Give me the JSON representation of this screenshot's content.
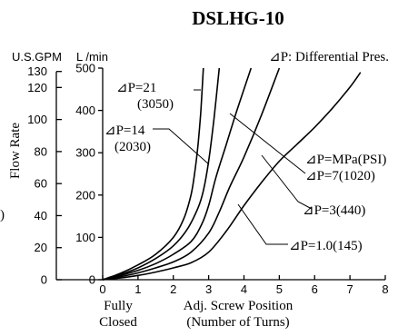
{
  "chart_data": {
    "type": "line",
    "title": "DSLHG-10",
    "legend_note": "⊿P: Differential Pres.",
    "xlabel_line1": "Adj. Screw Position",
    "xlabel_line2": "(Number of Turns)",
    "x_zero_label_line1": "Fully",
    "x_zero_label_line2": "Closed",
    "ylabel": "Flow Rate",
    "y_left_unit": "U.S.GPM",
    "y_right_unit": "L /min",
    "left_edge_glyph": ")",
    "xlim": [
      0,
      8
    ],
    "ylim": [
      0,
      500
    ],
    "x_ticks": [
      "0",
      "1",
      "2",
      "3",
      "4",
      "5",
      "6",
      "7",
      "8"
    ],
    "y_lmin_ticks": [
      "0",
      "100",
      "200",
      "300",
      "400",
      "500"
    ],
    "y_gpm_ticks": [
      {
        "label": "0",
        "value": 0
      },
      {
        "label": "20",
        "value": 20
      },
      {
        "label": "40",
        "value": 40
      },
      {
        "label": "60",
        "value": 60
      },
      {
        "label": "80",
        "value": 80
      },
      {
        "label": "100",
        "value": 100
      },
      {
        "label": "120",
        "value": 120
      },
      {
        "label": "130",
        "value": 130
      }
    ],
    "series": [
      {
        "name": "⊿P=21",
        "name2": "(3050)",
        "x": [
          0,
          0.5,
          1,
          1.5,
          2,
          2.3,
          2.5,
          2.6,
          2.7,
          2.78,
          2.85
        ],
        "y": [
          0,
          15,
          35,
          60,
          100,
          145,
          200,
          250,
          320,
          400,
          500
        ]
      },
      {
        "name": "⊿P=14",
        "name2": "(2030)",
        "x": [
          0,
          0.5,
          1,
          1.5,
          2,
          2.4,
          2.7,
          2.85,
          3.0,
          3.15,
          3.3
        ],
        "y": [
          0,
          12,
          28,
          50,
          80,
          120,
          170,
          210,
          280,
          380,
          500
        ]
      },
      {
        "name": "⊿P=7(1020)",
        "name2": "⊿P=MPa(PSI)",
        "x": [
          0,
          0.5,
          1,
          1.5,
          2,
          2.5,
          2.8,
          3.0,
          3.2,
          3.5,
          3.8,
          4.2
        ],
        "y": [
          0,
          10,
          22,
          38,
          60,
          90,
          130,
          175,
          240,
          320,
          400,
          500
        ]
      },
      {
        "name": "⊿P=3(440)",
        "x": [
          0,
          0.5,
          1,
          1.5,
          2,
          2.5,
          3.0,
          3.3,
          3.6,
          4.0,
          4.5,
          5.0
        ],
        "y": [
          0,
          7,
          16,
          28,
          42,
          65,
          110,
          160,
          220,
          290,
          390,
          500
        ]
      },
      {
        "name": "⊿P=1.0(145)",
        "x": [
          0,
          0.5,
          1,
          1.5,
          2,
          2.5,
          3,
          3.5,
          4,
          4.5,
          5,
          5.5,
          6,
          6.5,
          7,
          7.3
        ],
        "y": [
          0,
          4,
          10,
          18,
          28,
          40,
          65,
          115,
          175,
          230,
          280,
          320,
          360,
          405,
          455,
          490
        ]
      }
    ]
  }
}
